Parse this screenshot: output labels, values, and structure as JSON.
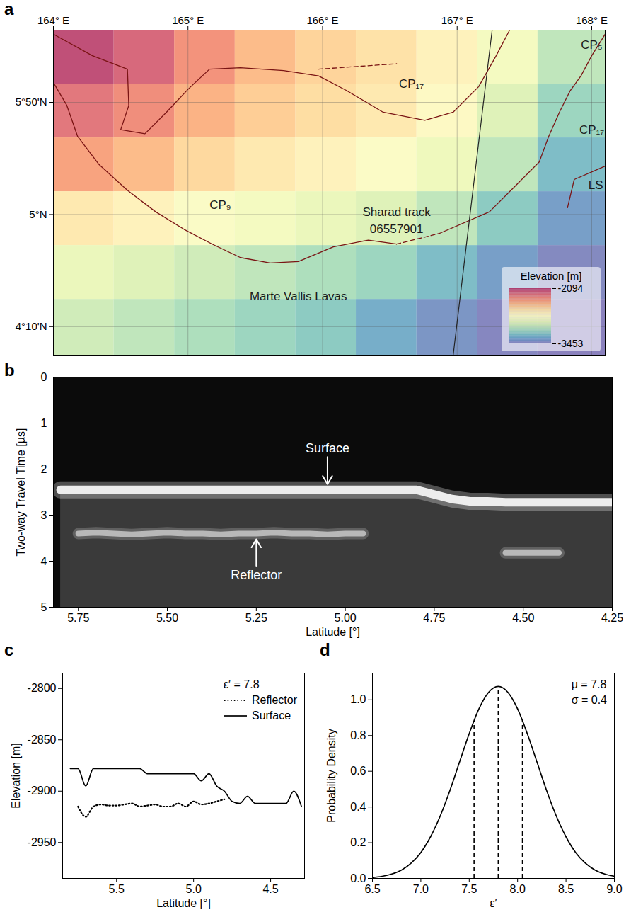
{
  "chart_data": [
    {
      "panel": "a",
      "type": "map",
      "xlim": [
        164,
        168.1
      ],
      "ylim": [
        3.95,
        6.37
      ],
      "xticks": [
        {
          "value": 164,
          "label": "164° E"
        },
        {
          "value": 165,
          "label": "165° E"
        },
        {
          "value": 166,
          "label": "166° E"
        },
        {
          "value": 167,
          "label": "167° E"
        },
        {
          "value": 168,
          "label": "168° E"
        }
      ],
      "yticks": [
        {
          "value": 4.1667,
          "label": "4°10'N"
        },
        {
          "value": 5,
          "label": "5°N"
        },
        {
          "value": 5.8333,
          "label": "5°50'N"
        }
      ],
      "grid": true,
      "legend": "lower right",
      "elevation": {
        "lon": [
          164,
          164.45,
          164.9,
          165.35,
          165.8,
          166.25,
          166.7,
          167.15,
          167.6,
          168.1
        ],
        "lat": [
          6.37,
          5.97,
          5.57,
          5.17,
          4.77,
          4.37,
          3.95
        ],
        "values": [
          [
            -2120,
            -2200,
            -2350,
            -2480,
            -2560,
            -2620,
            -2700,
            -2850,
            -3050
          ],
          [
            -2250,
            -2330,
            -2450,
            -2540,
            -2600,
            -2650,
            -2750,
            -2950,
            -3150
          ],
          [
            -2400,
            -2480,
            -2580,
            -2650,
            -2700,
            -2780,
            -2880,
            -3050,
            -3250
          ],
          [
            -2650,
            -2700,
            -2800,
            -2850,
            -2900,
            -2950,
            -3050,
            -3200,
            -3350
          ],
          [
            -2900,
            -2950,
            -3000,
            -3050,
            -3100,
            -3150,
            -3250,
            -3350,
            -3420
          ],
          [
            -3000,
            -3050,
            -3100,
            -3150,
            -3200,
            -3300,
            -3380,
            -3430,
            -3450
          ]
        ]
      },
      "colorbar": {
        "label": "Elevation [m]",
        "range": [
          -3453,
          -2094
        ],
        "ticks": [
          -2094,
          -3453
        ]
      },
      "boundaries": [
        {
          "line_style": "solid",
          "lon": [
            164.0,
            164.1,
            164.18,
            164.34,
            164.55,
            164.76,
            164.97,
            165.18,
            165.39,
            165.61,
            165.82,
            166.08,
            166.34,
            166.55
          ],
          "lat": [
            5.98,
            5.81,
            5.58,
            5.37,
            5.18,
            5.02,
            4.89,
            4.78,
            4.68,
            4.64,
            4.65,
            4.76,
            4.81,
            4.78
          ]
        },
        {
          "line_style": "dashed",
          "lon": [
            166.55,
            166.87
          ],
          "lat": [
            4.78,
            4.86
          ]
        },
        {
          "line_style": "solid",
          "lon": [
            166.87,
            167.24,
            167.45,
            167.61,
            167.68,
            167.76,
            167.84,
            167.92,
            168.0,
            168.1
          ],
          "lat": [
            4.86,
            5.02,
            5.23,
            5.39,
            5.58,
            5.76,
            5.92,
            6.03,
            6.18,
            6.34
          ]
        },
        {
          "line_style": "solid",
          "lon": [
            164.0,
            164.29,
            164.55,
            164.56,
            164.5,
            164.68,
            164.84,
            165.0,
            165.16,
            165.39,
            165.71,
            165.97,
            166.18,
            166.45,
            166.76,
            166.97,
            167.16,
            167.29,
            167.39
          ],
          "lat": [
            6.34,
            6.18,
            6.08,
            5.81,
            5.63,
            5.6,
            5.76,
            5.93,
            6.08,
            6.09,
            6.07,
            6.03,
            5.92,
            5.76,
            5.7,
            5.76,
            5.95,
            6.18,
            6.37
          ]
        },
        {
          "line_style": "dashed",
          "lon": [
            165.97,
            166.26,
            166.55
          ],
          "lat": [
            6.08,
            6.1,
            6.12
          ]
        },
        {
          "line_style": "solid",
          "lon": [
            168.1,
            167.87,
            167.82
          ],
          "lat": [
            5.36,
            5.26,
            5.05
          ]
        }
      ],
      "track": {
        "lon": [
          167.26,
          166.97
        ],
        "lat": [
          6.37,
          3.95
        ]
      },
      "labels": [
        {
          "text": "CP₁₇",
          "lon": 166.66,
          "lat": 5.97
        },
        {
          "text": "CP₉",
          "lon": 165.24,
          "lat": 5.07
        },
        {
          "text": "CP₅",
          "lon": 168.0,
          "lat": 6.26
        },
        {
          "text": "CP₁₇",
          "lon": 168.0,
          "lat": 5.63
        },
        {
          "text": "LS",
          "lon": 168.03,
          "lat": 5.22
        },
        {
          "text": "Sharad track",
          "lon": 166.55,
          "lat": 5.02
        },
        {
          "text": "06557901",
          "lon": 166.55,
          "lat": 4.89
        },
        {
          "text": "Marte Vallis Lavas",
          "lon": 165.82,
          "lat": 4.39
        }
      ]
    },
    {
      "panel": "b",
      "type": "radargram",
      "xlabel": "Latitude [°]",
      "ylabel": "Two-way Travel Time [µs]",
      "xlim": [
        5.82,
        4.25
      ],
      "ylim": [
        5,
        0
      ],
      "xticks": [
        5.75,
        {
          "value": 5.5,
          "label": "5.50"
        },
        5.25,
        {
          "value": 5,
          "label": "5.00"
        },
        4.75,
        {
          "value": 4.5,
          "label": "4.50"
        },
        4.25
      ],
      "yticks": [
        0,
        1,
        2,
        3,
        4,
        5
      ],
      "x": [
        5.8,
        5.75,
        5.7,
        5.65,
        5.6,
        5.55,
        5.5,
        5.45,
        5.4,
        5.35,
        5.3,
        5.25,
        5.2,
        5.15,
        5.1,
        5.05,
        5.0,
        4.95,
        4.9,
        4.85,
        4.8,
        4.75,
        4.7,
        4.65,
        4.6,
        4.55,
        4.5,
        4.45,
        4.4,
        4.35,
        4.3,
        4.25
      ],
      "series": [
        {
          "name": "Surface",
          "color": "#ededed",
          "values": [
            2.45,
            2.45,
            2.45,
            2.45,
            2.45,
            2.45,
            2.45,
            2.45,
            2.45,
            2.45,
            2.45,
            2.45,
            2.45,
            2.45,
            2.45,
            2.45,
            2.45,
            2.45,
            2.45,
            2.45,
            2.45,
            2.55,
            2.65,
            2.7,
            2.7,
            2.72,
            2.72,
            2.72,
            2.72,
            2.72,
            2.72,
            2.72
          ]
        },
        {
          "name": "Reflector",
          "color": "#b8b8b8",
          "values": [
            null,
            3.4,
            3.38,
            3.4,
            3.42,
            3.4,
            3.38,
            3.4,
            3.4,
            3.42,
            3.4,
            3.4,
            3.38,
            3.4,
            3.4,
            3.42,
            3.4,
            3.4,
            null,
            null,
            null,
            null,
            null,
            null,
            null,
            3.82,
            3.82,
            3.82,
            3.82,
            null,
            null,
            null
          ]
        }
      ],
      "annotations": [
        {
          "text": "Surface",
          "x": 5.05,
          "y": 1.55
        },
        {
          "text": "Reflector",
          "x": 5.25,
          "y": 4.3
        }
      ]
    },
    {
      "panel": "c",
      "type": "line",
      "xlabel": "Latitude [°]",
      "ylabel": "Elevation [m]",
      "xlim": [
        5.85,
        4.28
      ],
      "ylim": [
        -2985,
        -2785
      ],
      "xticks": [
        5.5,
        {
          "value": 5,
          "label": "5.0"
        },
        4.5
      ],
      "yticks": [
        -2800,
        -2850,
        -2900,
        -2950
      ],
      "legend": "upper right",
      "annotations": [
        "ε′ = 7.8"
      ],
      "x": [
        5.8,
        5.75,
        5.7,
        5.65,
        5.6,
        5.55,
        5.5,
        5.45,
        5.4,
        5.35,
        5.3,
        5.25,
        5.2,
        5.15,
        5.1,
        5.05,
        5.0,
        4.95,
        4.9,
        4.85,
        4.8,
        4.75,
        4.7,
        4.65,
        4.6,
        4.55,
        4.5,
        4.45,
        4.4,
        4.35,
        4.3
      ],
      "series": [
        {
          "name": "Reflector",
          "color": "#000000",
          "line_style": "dotted",
          "values": [
            null,
            -2915,
            -2925,
            -2915,
            -2913,
            -2914,
            -2914,
            -2913,
            -2912,
            -2915,
            -2914,
            -2913,
            -2915,
            -2915,
            -2912,
            -2915,
            -2910,
            -2913,
            -2912,
            -2910,
            -2908,
            null,
            null,
            null,
            null,
            null,
            null,
            null,
            null,
            null,
            null
          ]
        },
        {
          "name": "Surface",
          "color": "#000000",
          "line_style": "solid",
          "values": [
            -2878,
            -2878,
            -2895,
            -2878,
            -2878,
            -2878,
            -2878,
            -2878,
            -2878,
            -2878,
            -2883,
            -2883,
            -2883,
            -2883,
            -2883,
            -2883,
            -2883,
            -2890,
            -2883,
            -2895,
            -2900,
            -2910,
            -2912,
            -2905,
            -2912,
            -2912,
            -2912,
            -2912,
            -2912,
            -2900,
            -2915
          ]
        }
      ]
    },
    {
      "panel": "d",
      "type": "line",
      "xlabel": "ε′",
      "ylabel": "Probability Density",
      "xlim": [
        6.5,
        9.0
      ],
      "ylim": [
        0,
        1.15
      ],
      "xticks": [
        6.5,
        {
          "value": 7,
          "label": "7.0"
        },
        7.5,
        {
          "value": 8,
          "label": "8.0"
        },
        8.5,
        {
          "value": 9,
          "label": "9.0"
        }
      ],
      "yticks": [
        {
          "value": 0,
          "label": "0.0"
        },
        0.2,
        0.4,
        0.6,
        0.8,
        {
          "value": 1,
          "label": "1.0"
        }
      ],
      "annotations": [
        "μ = 7.8",
        "σ = 0.4"
      ],
      "x": [
        6.5,
        6.6,
        6.7,
        6.8,
        6.9,
        7.0,
        7.1,
        7.2,
        7.3,
        7.4,
        7.5,
        7.6,
        7.7,
        7.8,
        7.9,
        8.0,
        8.1,
        8.2,
        8.3,
        8.4,
        8.5,
        8.6,
        8.7,
        8.8,
        8.9,
        9.0
      ],
      "series": [
        {
          "color": "#000000",
          "line_style": "solid",
          "values": [
            0.005,
            0.012,
            0.025,
            0.047,
            0.086,
            0.145,
            0.233,
            0.349,
            0.492,
            0.652,
            0.811,
            0.949,
            1.042,
            1.075,
            1.042,
            0.949,
            0.811,
            0.652,
            0.492,
            0.349,
            0.233,
            0.145,
            0.086,
            0.047,
            0.025,
            0.012
          ]
        }
      ],
      "vlines": {
        "line_style": "dashed",
        "x": [
          7.55,
          7.8,
          8.05
        ],
        "y": [
          0.88,
          1.075,
          0.88
        ]
      }
    }
  ]
}
